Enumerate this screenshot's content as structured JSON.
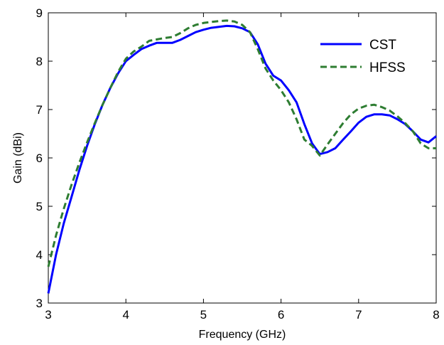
{
  "chart_data": {
    "type": "line",
    "title": "",
    "xlabel": "Frequency (GHz)",
    "ylabel": "Gain (dBi)",
    "xlim": [
      3,
      8
    ],
    "ylim": [
      3,
      9
    ],
    "xticks": [
      "3",
      "4",
      "5",
      "6",
      "7",
      "8"
    ],
    "yticks": [
      "3",
      "4",
      "5",
      "6",
      "7",
      "8",
      "9"
    ],
    "grid": false,
    "legend": "top-right",
    "series": [
      {
        "name": "CST",
        "color": "#0000ff",
        "style": "solid",
        "x": [
          3.0,
          3.1,
          3.2,
          3.3,
          3.4,
          3.5,
          3.6,
          3.7,
          3.8,
          3.9,
          4.0,
          4.1,
          4.2,
          4.3,
          4.4,
          4.5,
          4.6,
          4.7,
          4.8,
          4.9,
          5.0,
          5.1,
          5.2,
          5.3,
          5.4,
          5.5,
          5.6,
          5.7,
          5.8,
          5.9,
          6.0,
          6.1,
          6.2,
          6.3,
          6.4,
          6.5,
          6.6,
          6.7,
          6.8,
          6.9,
          7.0,
          7.1,
          7.2,
          7.3,
          7.4,
          7.5,
          7.6,
          7.7,
          7.8,
          7.9,
          8.0
        ],
        "y": [
          3.2,
          4.0,
          4.65,
          5.2,
          5.75,
          6.25,
          6.7,
          7.1,
          7.45,
          7.75,
          8.0,
          8.13,
          8.25,
          8.32,
          8.38,
          8.38,
          8.38,
          8.44,
          8.52,
          8.6,
          8.65,
          8.69,
          8.71,
          8.73,
          8.72,
          8.68,
          8.6,
          8.35,
          7.95,
          7.7,
          7.6,
          7.4,
          7.15,
          6.7,
          6.3,
          6.08,
          6.12,
          6.2,
          6.38,
          6.55,
          6.73,
          6.85,
          6.9,
          6.9,
          6.88,
          6.8,
          6.7,
          6.55,
          6.38,
          6.32,
          6.45
        ]
      },
      {
        "name": "HFSS",
        "color": "#2e7d32",
        "style": "dashed",
        "x": [
          3.0,
          3.1,
          3.2,
          3.3,
          3.4,
          3.5,
          3.6,
          3.7,
          3.8,
          3.9,
          4.0,
          4.1,
          4.2,
          4.3,
          4.4,
          4.5,
          4.6,
          4.7,
          4.8,
          4.9,
          5.0,
          5.1,
          5.2,
          5.3,
          5.4,
          5.5,
          5.6,
          5.7,
          5.8,
          5.9,
          6.0,
          6.1,
          6.2,
          6.3,
          6.4,
          6.5,
          6.6,
          6.7,
          6.8,
          6.9,
          7.0,
          7.1,
          7.2,
          7.3,
          7.4,
          7.5,
          7.6,
          7.7,
          7.8,
          7.9,
          8.0
        ],
        "y": [
          3.75,
          4.4,
          4.95,
          5.45,
          5.9,
          6.32,
          6.72,
          7.1,
          7.45,
          7.78,
          8.05,
          8.2,
          8.3,
          8.42,
          8.45,
          8.48,
          8.5,
          8.58,
          8.68,
          8.75,
          8.79,
          8.81,
          8.83,
          8.84,
          8.82,
          8.75,
          8.6,
          8.25,
          7.85,
          7.6,
          7.4,
          7.15,
          6.8,
          6.38,
          6.25,
          6.05,
          6.28,
          6.5,
          6.72,
          6.9,
          7.02,
          7.08,
          7.1,
          7.05,
          6.98,
          6.86,
          6.72,
          6.55,
          6.3,
          6.2,
          6.2
        ]
      }
    ]
  }
}
